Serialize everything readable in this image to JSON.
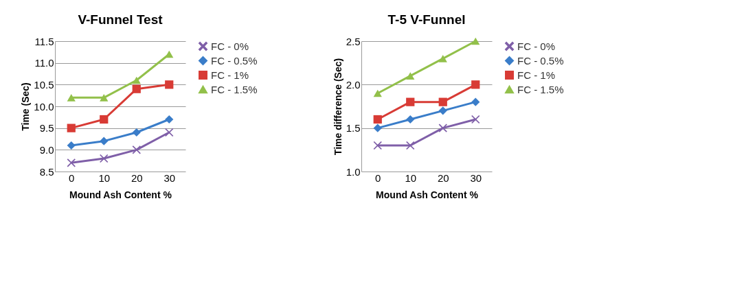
{
  "chart_data": [
    {
      "type": "line",
      "title": "V-Funnel Test",
      "xlabel": "Mound Ash Content %",
      "ylabel": "Time (Sec)",
      "categories": [
        "0",
        "10",
        "20",
        "30"
      ],
      "ylim": [
        8.5,
        11.5
      ],
      "yticks": [
        8.5,
        {
          "value": 9,
          "label": "9.0"
        },
        9.5,
        {
          "value": 10,
          "label": "10.0"
        },
        10.5,
        {
          "value": 11,
          "label": "11.0"
        },
        11.5
      ],
      "grid": "y",
      "legend": "right",
      "series": [
        {
          "name": "FC - 0%",
          "color": "#7f5fa8",
          "marker": "cross",
          "values": [
            8.7,
            8.8,
            9.0,
            9.4
          ]
        },
        {
          "name": "FC - 0.5%",
          "color": "#3a7dc9",
          "marker": "diamond",
          "values": [
            9.1,
            9.2,
            9.4,
            9.7
          ]
        },
        {
          "name": "FC - 1%",
          "color": "#d83b35",
          "marker": "square",
          "values": [
            9.5,
            9.7,
            10.4,
            10.5
          ]
        },
        {
          "name": "FC - 1.5%",
          "color": "#92c04a",
          "marker": "triangle",
          "values": [
            10.2,
            10.2,
            10.6,
            11.2
          ]
        }
      ]
    },
    {
      "type": "line",
      "title": "T-5 V-Funnel",
      "xlabel": "Mound Ash Content %",
      "ylabel": "Time difference  (Sec)",
      "categories": [
        "0",
        "10",
        "20",
        "30"
      ],
      "ylim": [
        1.0,
        2.5
      ],
      "yticks": [
        {
          "value": 1,
          "label": "1.0"
        },
        1.5,
        {
          "value": 2,
          "label": "2.0"
        },
        2.5
      ],
      "grid": "y",
      "legend": "right",
      "series": [
        {
          "name": "FC - 0%",
          "color": "#7f5fa8",
          "marker": "cross",
          "values": [
            1.3,
            1.3,
            1.5,
            1.6
          ]
        },
        {
          "name": "FC - 0.5%",
          "color": "#3a7dc9",
          "marker": "diamond",
          "values": [
            1.5,
            1.6,
            1.7,
            1.8
          ]
        },
        {
          "name": "FC - 1%",
          "color": "#d83b35",
          "marker": "square",
          "values": [
            1.6,
            1.8,
            1.8,
            2.0
          ]
        },
        {
          "name": "FC - 1.5%",
          "color": "#92c04a",
          "marker": "triangle",
          "values": [
            1.9,
            2.1,
            2.3,
            2.5
          ]
        }
      ]
    }
  ]
}
